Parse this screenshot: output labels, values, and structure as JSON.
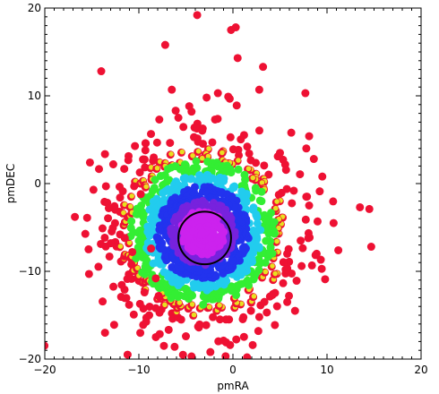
{
  "chart_data": {
    "type": "scatter",
    "xlabel": "pmRA",
    "ylabel": "pmDEC",
    "xlim": [
      -20,
      20
    ],
    "ylim": [
      -20,
      20
    ],
    "x_ticks": [
      -20,
      -10,
      0,
      10,
      20
    ],
    "y_ticks": [
      -20,
      -10,
      0,
      10,
      20
    ],
    "x_tick_labels": [
      "−20",
      "−10",
      "0",
      "10",
      "20"
    ],
    "y_tick_labels": [
      "−20",
      "−10",
      "0",
      "10",
      "20"
    ],
    "grid": false,
    "colors": {
      "outlier": "#ee1133",
      "edge_yellow": "#e8e020",
      "green": "#33ee33",
      "cyan": "#22ccee",
      "blue": "#2233ee",
      "purple": "#7722dd",
      "magenta": "#cc22ee"
    },
    "circle": {
      "center": [
        -3,
        -6.2
      ],
      "radius": 2.8,
      "color": "#000000"
    },
    "outliers": [
      [
        -3.8,
        19.2
      ],
      [
        -0.2,
        17.5
      ],
      [
        0.3,
        17.8
      ],
      [
        -7.2,
        15.8
      ],
      [
        0.5,
        14.3
      ],
      [
        -14,
        12.8
      ],
      [
        3.2,
        13.3
      ],
      [
        -6.5,
        10.7
      ],
      [
        -2.8,
        9.8
      ],
      [
        2.8,
        10.7
      ],
      [
        7.7,
        10.3
      ],
      [
        -0.5,
        9.9
      ],
      [
        -1.6,
        10.3
      ],
      [
        0.4,
        8.9
      ],
      [
        -4.4,
        8.2
      ],
      [
        -5.8,
        7.5
      ],
      [
        -1.9,
        7.3
      ],
      [
        6.2,
        5.8
      ],
      [
        8.1,
        5.4
      ],
      [
        -9.3,
        4.6
      ],
      [
        5,
        3.5
      ],
      [
        7.8,
        4
      ],
      [
        -15.2,
        2.4
      ],
      [
        8.6,
        2.8
      ],
      [
        -8.5,
        2.6
      ],
      [
        9.5,
        0.8
      ],
      [
        -13.5,
        -0.3
      ],
      [
        -10.5,
        -0.3
      ],
      [
        -9.8,
        -1.2
      ],
      [
        -12,
        -1.6
      ],
      [
        7.8,
        -1.5
      ],
      [
        -13.2,
        -2.8
      ],
      [
        8.1,
        -2.5
      ],
      [
        13.5,
        -2.7
      ],
      [
        14.5,
        -2.9
      ],
      [
        -16.8,
        -3.8
      ],
      [
        -15.5,
        -3.9
      ],
      [
        10.7,
        -4.5
      ],
      [
        -12,
        -5.8
      ],
      [
        -11.5,
        -6.2
      ],
      [
        -13,
        -6.8
      ],
      [
        7.2,
        -6.5
      ],
      [
        14.7,
        -7.2
      ],
      [
        11.2,
        -7.6
      ],
      [
        -10.7,
        -7.8
      ],
      [
        -8.7,
        -7.4
      ],
      [
        8.9,
        -8
      ],
      [
        -10.8,
        -9.2
      ],
      [
        5.6,
        -9.8
      ],
      [
        -15.3,
        -10.3
      ],
      [
        7.3,
        -9.4
      ],
      [
        9.8,
        -10.9
      ],
      [
        -8.2,
        -10.8
      ],
      [
        -9.4,
        -12.4
      ],
      [
        -7.9,
        -12.8
      ],
      [
        -8.2,
        -14.2
      ],
      [
        4.2,
        -12.7
      ],
      [
        6.6,
        -14.5
      ],
      [
        -8.9,
        -15
      ],
      [
        -5.5,
        -15.5
      ],
      [
        2.8,
        -15.2
      ],
      [
        -13.6,
        -17
      ],
      [
        -3.7,
        -16.3
      ],
      [
        -1,
        -17.9
      ],
      [
        2.7,
        -16.8
      ],
      [
        -5,
        -17.4
      ],
      [
        -6.2,
        -18.6
      ],
      [
        -11.2,
        -19.5
      ],
      [
        -2.4,
        -19.2
      ],
      [
        -0.3,
        -18.4
      ],
      [
        2.1,
        -18.4
      ],
      [
        -4.4,
        -19.7
      ],
      [
        1.5,
        -19.8
      ]
    ]
  }
}
